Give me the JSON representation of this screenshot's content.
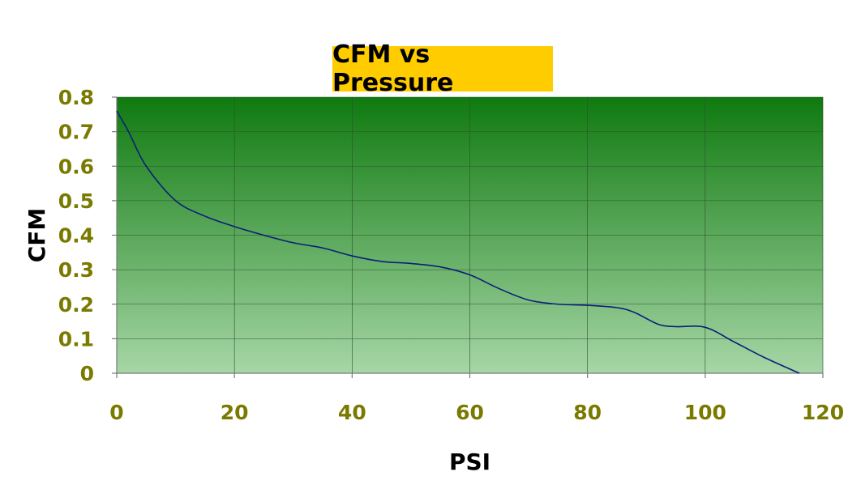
{
  "chart_data": {
    "type": "line",
    "title": "CFM vs Pressure",
    "xlabel": "PSI",
    "ylabel": "CFM",
    "xlim": [
      0,
      120
    ],
    "ylim": [
      0,
      0.8
    ],
    "x_ticks": [
      "0",
      "20",
      "40",
      "60",
      "80",
      "100",
      "120"
    ],
    "y_ticks": [
      "0",
      "0.1",
      "0.2",
      "0.3",
      "0.4",
      "0.5",
      "0.6",
      "0.7",
      "0.8"
    ],
    "grid": true,
    "legend": "none",
    "series": [
      {
        "x": [
          0,
          2,
          5,
          10,
          15,
          20,
          25,
          30,
          35,
          40,
          45,
          50,
          55,
          60,
          65,
          70,
          75,
          80,
          85,
          88,
          92,
          95,
          100,
          105,
          110,
          116
        ],
        "y": [
          0.76,
          0.7,
          0.6,
          0.5,
          0.455,
          0.425,
          0.4,
          0.378,
          0.363,
          0.34,
          0.324,
          0.318,
          0.308,
          0.285,
          0.245,
          0.212,
          0.2,
          0.197,
          0.19,
          0.176,
          0.142,
          0.135,
          0.133,
          0.09,
          0.046,
          0.0
        ]
      }
    ]
  },
  "colors": {
    "title_bg": "#ffcc00",
    "tick_text": "#7a7a00",
    "line": "#0a1f7a",
    "plot_top": "#0f7a0f",
    "plot_bottom": "#a6d6a6",
    "grid": "#2f4f2f"
  }
}
